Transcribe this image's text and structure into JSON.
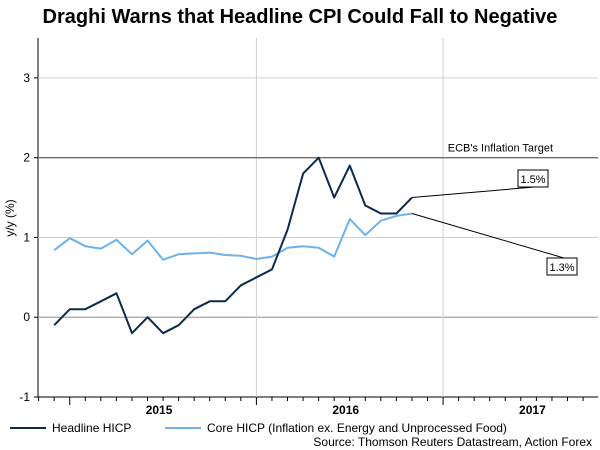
{
  "chart_data": {
    "type": "line",
    "title": "Draghi Warns that Headline CPI Could Fall to Negative",
    "ylabel": "y/y (%)",
    "ylim": [
      -1,
      3.5
    ],
    "yticks": [
      -1,
      0,
      1,
      2,
      3
    ],
    "x_start": 2014.917,
    "x_step": 0.08333,
    "xlim": [
      2014.83,
      2017.83
    ],
    "year_labels": [
      {
        "label": "2015",
        "at": 2015.0
      },
      {
        "label": "2016",
        "at": 2016.0
      },
      {
        "label": "2017",
        "at": 2017.0
      }
    ],
    "series": [
      {
        "name": "Headline HICP",
        "color": "#0b2a4f",
        "values": [
          -0.1,
          0.1,
          0.1,
          0.2,
          0.3,
          -0.2,
          0.0,
          -0.2,
          -0.1,
          0.1,
          0.2,
          0.2,
          0.4,
          0.5,
          0.6,
          1.1,
          1.8,
          2.0,
          1.5,
          1.9,
          1.4,
          1.3,
          1.3,
          1.5
        ]
      },
      {
        "name": "Core HICP (Inflation ex. Energy and Unprocessed Food)",
        "color": "#6cb2eb",
        "values": [
          0.84,
          0.99,
          0.89,
          0.86,
          0.97,
          0.79,
          0.96,
          0.72,
          0.79,
          0.8,
          0.81,
          0.78,
          0.77,
          0.73,
          0.76,
          0.87,
          0.89,
          0.87,
          0.76,
          1.23,
          1.03,
          1.21,
          1.27,
          1.3
        ]
      }
    ],
    "target": {
      "value": 2.0,
      "label": "ECB's Inflation Target"
    },
    "callouts": {
      "headline": "1.5%",
      "core": "1.3%"
    },
    "source": "Source: Thomson Reuters Datastream, Action Forex"
  }
}
